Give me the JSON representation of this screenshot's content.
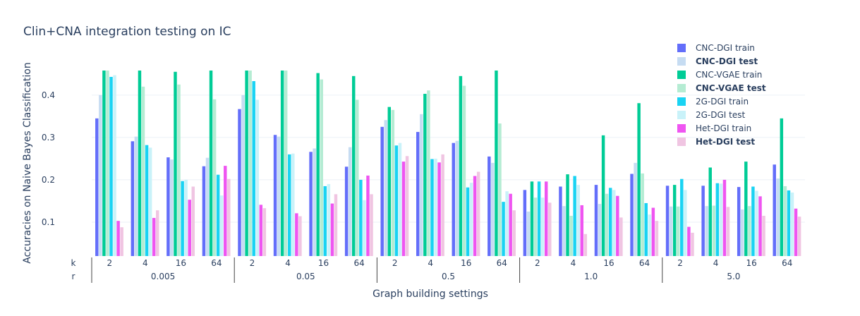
{
  "chart_data": {
    "type": "bar",
    "title": "Clin+CNA integration testing on IC",
    "xlabel": "Graph building settings",
    "ylabel": "Accuracies on Naive Bayes Classification",
    "ylim": [
      0.02,
      0.458
    ],
    "yticks": [
      "0.1",
      "0.2",
      "0.3",
      "0.4"
    ],
    "grid": true,
    "legend_position": "top-right",
    "multicategory_labels": {
      "inner": "k",
      "outer": "r"
    },
    "groups": [
      {
        "r": "0.005",
        "ks": [
          "2",
          "4",
          "16",
          "64"
        ]
      },
      {
        "r": "0.05",
        "ks": [
          "2",
          "4",
          "16",
          "64"
        ]
      },
      {
        "r": "0.5",
        "ks": [
          "2",
          "4",
          "16",
          "64"
        ]
      },
      {
        "r": "1.0",
        "ks": [
          "2",
          "4",
          "16",
          "64"
        ]
      },
      {
        "r": "5.0",
        "ks": [
          "2",
          "4",
          "16",
          "64"
        ]
      }
    ],
    "series": [
      {
        "name": "CNC-DGI train",
        "bold": false,
        "color": "#636efa",
        "values": [
          0.345,
          0.291,
          0.253,
          0.232,
          0.367,
          0.306,
          0.266,
          0.231,
          0.325,
          0.313,
          0.287,
          0.255,
          0.176,
          0.184,
          0.188,
          0.214,
          0.186,
          0.186,
          0.183,
          0.236
        ]
      },
      {
        "name": "CNC-DGI test",
        "bold": true,
        "color": "#c6dcf2",
        "values": [
          0.4,
          0.302,
          0.248,
          0.252,
          0.4,
          0.302,
          0.274,
          0.277,
          0.341,
          0.355,
          0.292,
          0.24,
          0.125,
          0.138,
          0.143,
          0.24,
          0.137,
          0.138,
          0.13,
          0.203
        ]
      },
      {
        "name": "CNC-VGAE train",
        "bold": false,
        "color": "#00cc96",
        "values": [
          0.458,
          0.458,
          0.455,
          0.458,
          0.458,
          0.458,
          0.452,
          0.445,
          0.372,
          0.403,
          0.445,
          0.458,
          0.196,
          0.213,
          0.305,
          0.381,
          0.188,
          0.229,
          0.243,
          0.345
        ]
      },
      {
        "name": "CNC-VGAE test",
        "bold": true,
        "color": "#b5ecd3",
        "values": [
          0.458,
          0.42,
          0.425,
          0.39,
          0.458,
          0.458,
          0.437,
          0.389,
          0.365,
          0.411,
          0.422,
          0.333,
          0.158,
          0.115,
          0.167,
          0.215,
          0.137,
          0.139,
          0.138,
          0.185
        ]
      },
      {
        "name": "2G-DGI train",
        "bold": false,
        "color": "#19d3f3",
        "values": [
          0.443,
          0.282,
          0.197,
          0.212,
          0.433,
          0.26,
          0.185,
          0.2,
          0.281,
          0.249,
          0.182,
          0.148,
          0.196,
          0.209,
          0.181,
          0.145,
          0.202,
          0.192,
          0.184,
          0.175
        ]
      },
      {
        "name": "2G-DGI test",
        "bold": false,
        "color": "#c9f2f9",
        "values": [
          0.447,
          0.276,
          0.2,
          0.163,
          0.389,
          0.262,
          0.19,
          0.152,
          0.287,
          0.25,
          0.193,
          0.173,
          0.158,
          0.188,
          0.176,
          0.118,
          0.176,
          0.191,
          0.174,
          0.17
        ]
      },
      {
        "name": "Het-DGI train",
        "bold": false,
        "color": "#ef55f1",
        "values": [
          0.103,
          0.11,
          0.153,
          0.233,
          0.141,
          0.121,
          0.144,
          0.21,
          0.243,
          0.241,
          0.209,
          0.167,
          0.196,
          0.14,
          0.162,
          0.134,
          0.089,
          0.2,
          0.161,
          0.132
        ]
      },
      {
        "name": "Het-DGI test",
        "bold": true,
        "color": "#f0c5e2",
        "values": [
          0.088,
          0.128,
          0.184,
          0.202,
          0.133,
          0.114,
          0.166,
          0.166,
          0.256,
          0.26,
          0.219,
          0.128,
          0.146,
          0.072,
          0.111,
          0.103,
          0.075,
          0.136,
          0.115,
          0.113
        ]
      }
    ]
  }
}
